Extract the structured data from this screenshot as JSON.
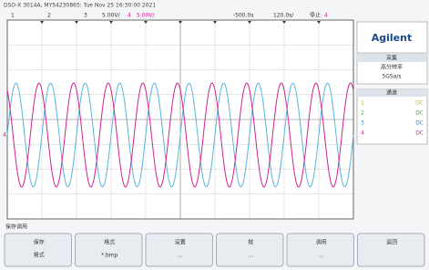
{
  "header": {
    "title": "DSO-X 3014A, MY54230865: Tue Nov 25 16:30:00 2021",
    "channels": [
      "1",
      "2",
      "3",
      "4"
    ],
    "ch3_scale": "5.00V/",
    "ch4_scale": "5.00V/",
    "delay": "-500.0s",
    "timebase": "120.0s/",
    "status": "停止",
    "trigger": "4"
  },
  "screen": {
    "ground_marker": "4"
  },
  "side_panel": {
    "brand": "Agilent",
    "acquire_title": "采集",
    "acquire_mode": "高分辨率",
    "sample_rate": "5GSa/s",
    "channels_title": "通道",
    "channel_rows": [
      [
        "1",
        "DC"
      ],
      [
        "2",
        "DC"
      ],
      [
        "3",
        "DC"
      ],
      [
        "4",
        "DC"
      ]
    ]
  },
  "softkeys": {
    "menu_title": "保存调用",
    "keys": [
      [
        "保存",
        "格式"
      ],
      [
        "格式",
        "*.bmp"
      ],
      [
        "设置",
        "..."
      ],
      [
        "按",
        "..."
      ],
      [
        "调用",
        "..."
      ],
      [
        "返回",
        ""
      ]
    ]
  }
}
